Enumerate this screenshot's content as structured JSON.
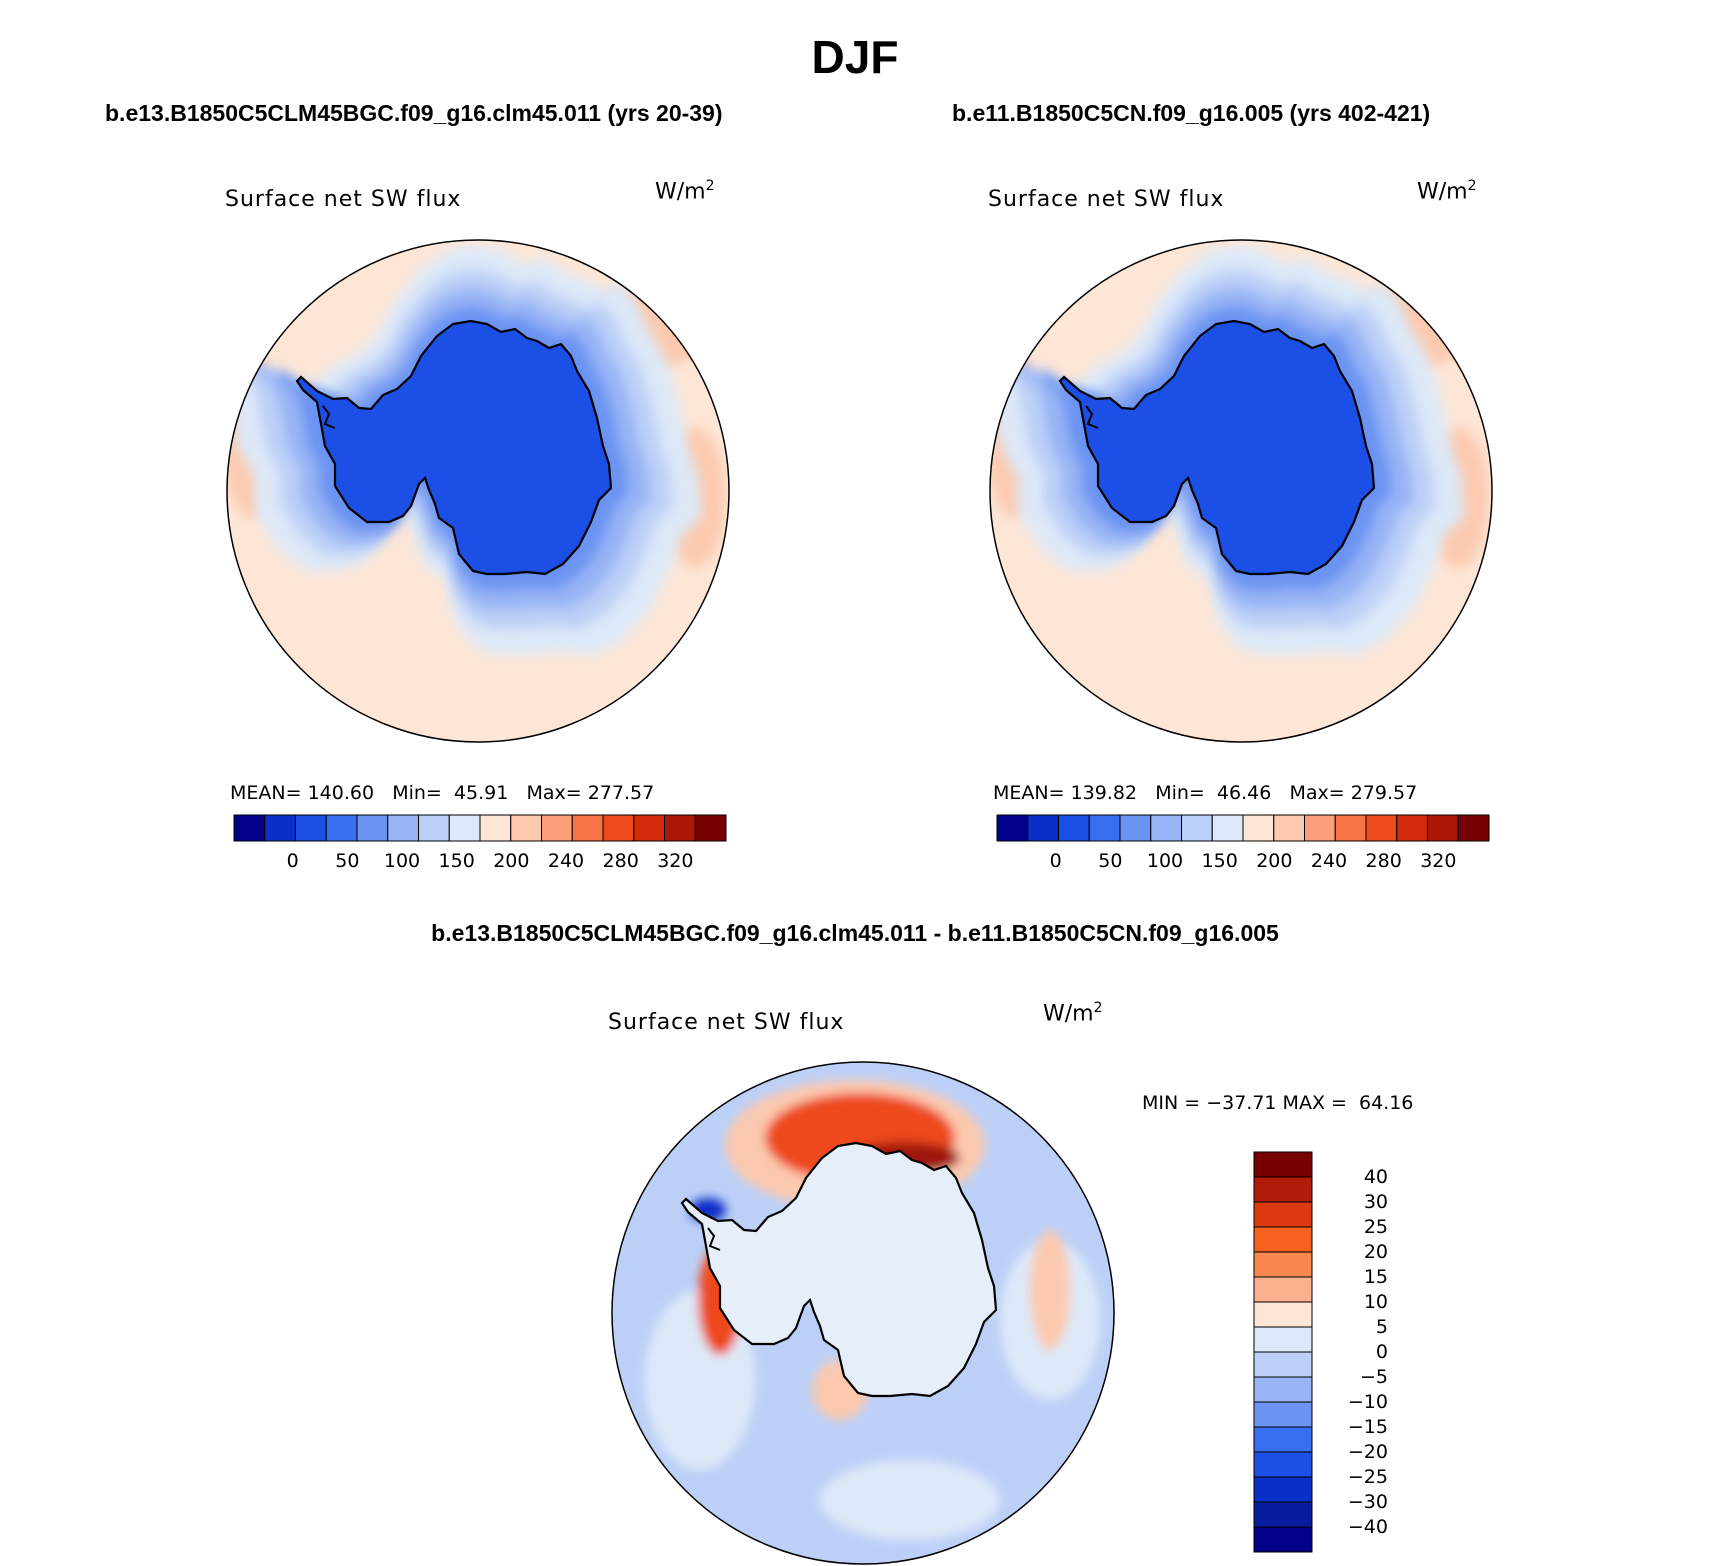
{
  "title": "DJF",
  "panels": [
    {
      "case": "b.e13.B1850C5CLM45BGC.f09_g16.clm45.011 (yrs 20-39)",
      "variable": "Surface net SW flux",
      "units_base": "W/m",
      "units_exp": "2",
      "stats": {
        "mean_label": "MEAN=",
        "mean": "140.60",
        "min_label": "Min=",
        "min": "45.91",
        "max_label": "Max=",
        "max": "277.57"
      }
    },
    {
      "case": "b.e11.B1850C5CN.f09_g16.005 (yrs 402-421)",
      "variable": "Surface net SW flux",
      "units_base": "W/m",
      "units_exp": "2",
      "stats": {
        "mean_label": "MEAN=",
        "mean": "139.82",
        "min_label": "Min=",
        "min": "46.46",
        "max_label": "Max=",
        "max": "279.57"
      }
    }
  ],
  "diff_panel": {
    "title": "b.e13.B1850C5CLM45BGC.f09_g16.clm45.011 - b.e11.B1850C5CN.f09_g16.005",
    "variable": "Surface net SW flux",
    "units_base": "W/m",
    "units_exp": "2",
    "minmax": "MIN = −37.71 MAX =  64.16"
  },
  "colorbar_abs": {
    "labels": [
      "0",
      "50",
      "100",
      "150",
      "200",
      "240",
      "280",
      "320"
    ],
    "colors": [
      "#000088",
      "#0a2fc8",
      "#1c4fe6",
      "#3a6ef0",
      "#6a93f2",
      "#98b4f5",
      "#bcd0f7",
      "#dde9f8",
      "#fde6d6",
      "#fcc9ae",
      "#fba07a",
      "#f77447",
      "#ee4a1e",
      "#d42a0c",
      "#ab1808",
      "#780000"
    ]
  },
  "colorbar_diff": {
    "labels": [
      "40",
      "30",
      "25",
      "20",
      "15",
      "10",
      "5",
      "0",
      "−5",
      "−10",
      "−15",
      "−20",
      "−25",
      "−30",
      "−40"
    ],
    "colors": [
      "#780000",
      "#b01c08",
      "#de3a12",
      "#f5611f",
      "#f9874e",
      "#fbb08e",
      "#fde6d6",
      "#dde9f8",
      "#bcd0f7",
      "#98b4f5",
      "#6a93f2",
      "#3a6ef0",
      "#1c4fe6",
      "#0a2fc8",
      "#061e9e",
      "#000088"
    ]
  },
  "map_colors": {
    "ocean_warm": "#fde6d6",
    "pink": "#fcc9ae",
    "light_blue": "#dde9f8",
    "blue_3": "#bcd0f7",
    "blue_2": "#98b4f5",
    "blue_1": "#6a93f2",
    "ice_blue": "#1c4fe6",
    "diff_base": "#bcd0f7",
    "diff_red": "#ee4a1e",
    "diff_darkred": "#9e1208"
  }
}
